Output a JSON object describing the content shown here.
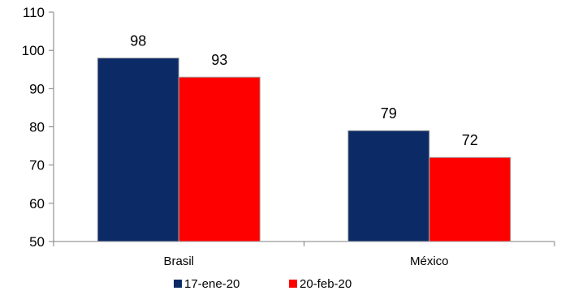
{
  "chart_data": {
    "type": "bar",
    "categories": [
      "Brasil",
      "México"
    ],
    "series": [
      {
        "name": "17-ene-20",
        "values": [
          98,
          79
        ],
        "data_labels": [
          "98",
          "79"
        ],
        "color": "#0c2a66"
      },
      {
        "name": "20-feb-20",
        "values": [
          93,
          72
        ],
        "data_labels": [
          "93",
          "72"
        ],
        "color": "#ff0000"
      }
    ],
    "yticks": [
      50,
      60,
      70,
      80,
      90,
      100,
      110
    ],
    "ylim": [
      50,
      110
    ],
    "grid": false,
    "legend_position": "bottom"
  }
}
